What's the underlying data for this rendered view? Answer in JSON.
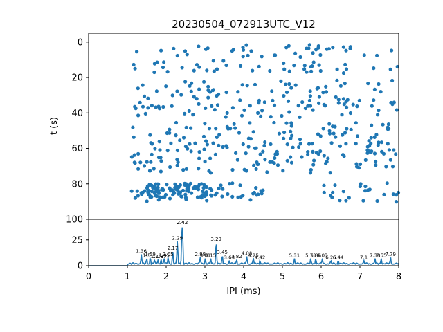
{
  "chart_data": [
    {
      "type": "scatter",
      "title": "20230504_072913UTC_V12",
      "xlabel": "",
      "ylabel": "t (s)",
      "xlim": [
        0,
        8
      ],
      "ylim": [
        100,
        -5
      ],
      "y_inverted": true,
      "yticks": [
        "0",
        "20",
        "40",
        "60",
        "80",
        "100"
      ],
      "color": "#1f77b4",
      "row_times": [
        5,
        14,
        25,
        33,
        39,
        49,
        55,
        60,
        65,
        71,
        83,
        87
      ],
      "x_start": 1.1,
      "x_end": 8.0,
      "points_note_free": ""
    },
    {
      "type": "line",
      "xlabel": "IPI (ms)",
      "ylabel": "",
      "xlim": [
        0,
        8
      ],
      "ylim": [
        0,
        45
      ],
      "xticks": [
        "0",
        "1",
        "2",
        "3",
        "4",
        "5",
        "6",
        "7",
        "8"
      ],
      "yticks": [
        "0",
        "25"
      ],
      "color": "#1f77b4",
      "peaks": [
        {
          "x": 1.36,
          "y": 11,
          "label": "1.36"
        },
        {
          "x": 1.5,
          "y": 7,
          "label": "1.5"
        },
        {
          "x": 1.59,
          "y": 8,
          "label": "1.59"
        },
        {
          "x": 1.7,
          "y": 6,
          "label": "1.7"
        },
        {
          "x": 1.79,
          "y": 6,
          "label": "1.79"
        },
        {
          "x": 1.87,
          "y": 6,
          "label": "1.87"
        },
        {
          "x": 1.95,
          "y": 7,
          "label": "1.95"
        },
        {
          "x": 2.05,
          "y": 8,
          "label": "2.05"
        },
        {
          "x": 2.17,
          "y": 14,
          "label": "2.17"
        },
        {
          "x": 2.29,
          "y": 24,
          "label": "2.29"
        },
        {
          "x": 2.41,
          "y": 39,
          "label": "2.41"
        },
        {
          "x": 2.42,
          "y": 39,
          "label": "2.42"
        },
        {
          "x": 2.88,
          "y": 8,
          "label": "2.88"
        },
        {
          "x": 3.01,
          "y": 7,
          "label": "3.01"
        },
        {
          "x": 3.15,
          "y": 7,
          "label": "3.15"
        },
        {
          "x": 3.29,
          "y": 23,
          "label": "3.29"
        },
        {
          "x": 3.45,
          "y": 10,
          "label": "3.45"
        },
        {
          "x": 3.63,
          "y": 5,
          "label": "3.63"
        },
        {
          "x": 3.82,
          "y": 6,
          "label": "3.82"
        },
        {
          "x": 4.08,
          "y": 9,
          "label": "4.08"
        },
        {
          "x": 4.25,
          "y": 7,
          "label": "4.25"
        },
        {
          "x": 4.42,
          "y": 5,
          "label": "4.42"
        },
        {
          "x": 5.31,
          "y": 7,
          "label": "5.31"
        },
        {
          "x": 5.73,
          "y": 7,
          "label": "5.73"
        },
        {
          "x": 5.86,
          "y": 7,
          "label": "5.86"
        },
        {
          "x": 6.03,
          "y": 7,
          "label": "6.03"
        },
        {
          "x": 6.25,
          "y": 5,
          "label": "6.25"
        },
        {
          "x": 6.44,
          "y": 5,
          "label": "6.44"
        },
        {
          "x": 7.1,
          "y": 5,
          "label": "7.1"
        },
        {
          "x": 7.39,
          "y": 7,
          "label": "7.39"
        },
        {
          "x": 7.55,
          "y": 7,
          "label": "7.55"
        },
        {
          "x": 7.79,
          "y": 8,
          "label": "7.79"
        }
      ]
    }
  ]
}
